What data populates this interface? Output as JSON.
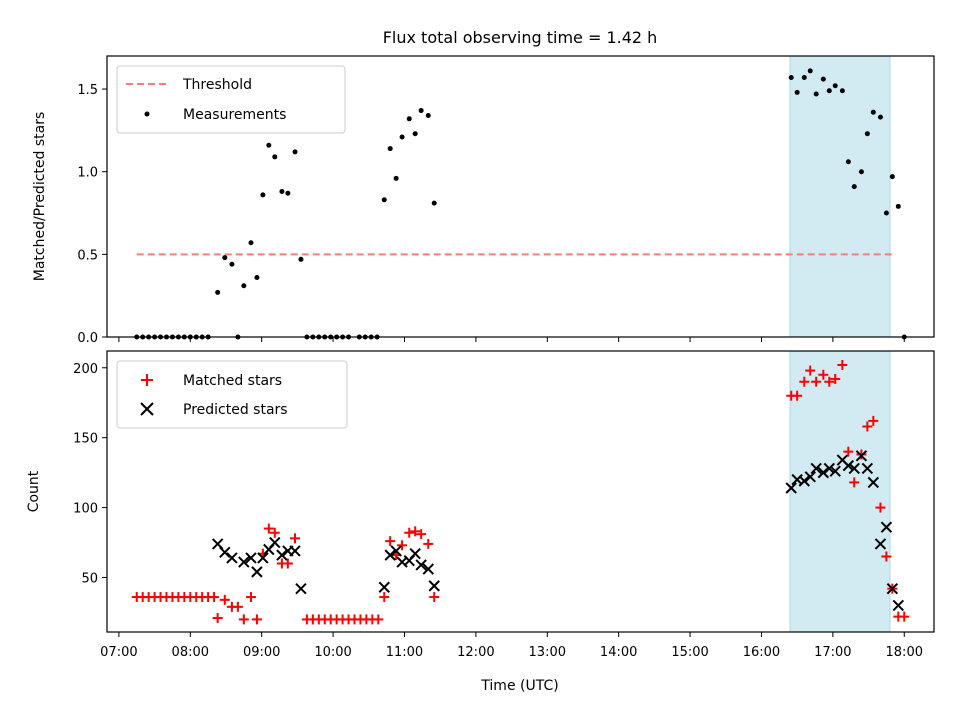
{
  "chart_data": [
    {
      "type": "scatter",
      "title": "Flux total observing time = 1.42 h",
      "ylabel": "Matched/Predicted stars",
      "xlabel": "",
      "xlim": [
        "06:50",
        "18:25"
      ],
      "ylim": [
        0,
        1.7
      ],
      "yticks": [
        0.0,
        0.5,
        1.0,
        1.5
      ],
      "ytick_labels": [
        "0.0",
        "0.5",
        "1.0",
        "1.5"
      ],
      "legend_position": "top-left",
      "highlight_span": {
        "start": "16:24",
        "end": "17:48",
        "color": "#add8e6"
      },
      "threshold": {
        "name": "Threshold",
        "value": 0.5,
        "x_start": "07:15",
        "x_end": "17:52",
        "color": "#ff7b7b",
        "style": "dashed"
      },
      "series": [
        {
          "name": "Measurements",
          "color": "#000000",
          "marker": "dot",
          "points": [
            [
              "07:15",
              0
            ],
            [
              "07:20",
              0
            ],
            [
              "07:25",
              0
            ],
            [
              "07:30",
              0
            ],
            [
              "07:35",
              0
            ],
            [
              "07:40",
              0
            ],
            [
              "07:45",
              0
            ],
            [
              "07:50",
              0
            ],
            [
              "07:55",
              0
            ],
            [
              "08:00",
              0
            ],
            [
              "08:05",
              0
            ],
            [
              "08:10",
              0
            ],
            [
              "08:15",
              0
            ],
            [
              "08:23",
              0.27
            ],
            [
              "08:29",
              0.48
            ],
            [
              "08:35",
              0.44
            ],
            [
              "08:40",
              0
            ],
            [
              "08:45",
              0.31
            ],
            [
              "08:51",
              0.57
            ],
            [
              "08:56",
              0.36
            ],
            [
              "09:01",
              0.86
            ],
            [
              "09:06",
              1.16
            ],
            [
              "09:11",
              1.09
            ],
            [
              "09:17",
              0.88
            ],
            [
              "09:22",
              0.87
            ],
            [
              "09:28",
              1.12
            ],
            [
              "09:33",
              0.47
            ],
            [
              "09:38",
              0
            ],
            [
              "09:43",
              0
            ],
            [
              "09:48",
              0
            ],
            [
              "09:53",
              0
            ],
            [
              "09:58",
              0
            ],
            [
              "10:03",
              0
            ],
            [
              "10:08",
              0
            ],
            [
              "10:13",
              0
            ],
            [
              "10:22",
              0
            ],
            [
              "10:27",
              0
            ],
            [
              "10:32",
              0
            ],
            [
              "10:37",
              0
            ],
            [
              "10:43",
              0.83
            ],
            [
              "10:48",
              1.14
            ],
            [
              "10:53",
              0.96
            ],
            [
              "10:58",
              1.21
            ],
            [
              "11:04",
              1.32
            ],
            [
              "11:09",
              1.23
            ],
            [
              "11:14",
              1.37
            ],
            [
              "11:20",
              1.34
            ],
            [
              "11:25",
              0.81
            ],
            [
              "16:25",
              1.57
            ],
            [
              "16:30",
              1.48
            ],
            [
              "16:36",
              1.57
            ],
            [
              "16:41",
              1.61
            ],
            [
              "16:46",
              1.47
            ],
            [
              "16:52",
              1.56
            ],
            [
              "16:57",
              1.49
            ],
            [
              "17:02",
              1.52
            ],
            [
              "17:08",
              1.49
            ],
            [
              "17:13",
              1.06
            ],
            [
              "17:18",
              0.91
            ],
            [
              "17:24",
              1.0
            ],
            [
              "17:29",
              1.23
            ],
            [
              "17:34",
              1.36
            ],
            [
              "17:40",
              1.33
            ],
            [
              "17:45",
              0.75
            ],
            [
              "17:50",
              0.97
            ],
            [
              "17:55",
              0.79
            ],
            [
              "18:00",
              0
            ]
          ]
        }
      ]
    },
    {
      "type": "scatter",
      "title": "",
      "ylabel": "Count",
      "xlabel": "Time (UTC)",
      "xlim": [
        "06:50",
        "18:25"
      ],
      "ylim": [
        11,
        212
      ],
      "yticks": [
        50,
        100,
        150,
        200
      ],
      "ytick_labels": [
        "50",
        "100",
        "150",
        "200"
      ],
      "xticks": [
        "07:00",
        "08:00",
        "09:00",
        "10:00",
        "11:00",
        "12:00",
        "13:00",
        "14:00",
        "15:00",
        "16:00",
        "17:00",
        "18:00"
      ],
      "xtick_labels": [
        "07:00",
        "08:00",
        "09:00",
        "10:00",
        "11:00",
        "12:00",
        "13:00",
        "14:00",
        "15:00",
        "16:00",
        "17:00",
        "18:00"
      ],
      "legend_position": "top-left",
      "highlight_span": {
        "start": "16:24",
        "end": "17:48",
        "color": "#add8e6"
      },
      "series": [
        {
          "name": "Matched stars",
          "color": "#ff0000",
          "marker": "plus",
          "points": [
            [
              "07:15",
              36
            ],
            [
              "07:20",
              36
            ],
            [
              "07:25",
              36
            ],
            [
              "07:30",
              36
            ],
            [
              "07:35",
              36
            ],
            [
              "07:40",
              36
            ],
            [
              "07:45",
              36
            ],
            [
              "07:50",
              36
            ],
            [
              "07:55",
              36
            ],
            [
              "08:00",
              36
            ],
            [
              "08:05",
              36
            ],
            [
              "08:10",
              36
            ],
            [
              "08:15",
              36
            ],
            [
              "08:20",
              36
            ],
            [
              "08:23",
              21
            ],
            [
              "08:29",
              34
            ],
            [
              "08:35",
              29
            ],
            [
              "08:40",
              29
            ],
            [
              "08:45",
              20
            ],
            [
              "08:51",
              36
            ],
            [
              "08:56",
              20
            ],
            [
              "09:01",
              67
            ],
            [
              "09:06",
              85
            ],
            [
              "09:11",
              82
            ],
            [
              "09:17",
              60
            ],
            [
              "09:22",
              60
            ],
            [
              "09:28",
              78
            ],
            [
              "09:38",
              20
            ],
            [
              "09:43",
              20
            ],
            [
              "09:48",
              20
            ],
            [
              "09:53",
              20
            ],
            [
              "09:58",
              20
            ],
            [
              "10:03",
              20
            ],
            [
              "10:08",
              20
            ],
            [
              "10:13",
              20
            ],
            [
              "10:18",
              20
            ],
            [
              "10:23",
              20
            ],
            [
              "10:28",
              20
            ],
            [
              "10:33",
              20
            ],
            [
              "10:38",
              20
            ],
            [
              "10:43",
              36
            ],
            [
              "10:48",
              76
            ],
            [
              "10:53",
              66
            ],
            [
              "10:58",
              73
            ],
            [
              "11:04",
              82
            ],
            [
              "11:09",
              83
            ],
            [
              "11:14",
              81
            ],
            [
              "11:20",
              74
            ],
            [
              "11:25",
              36
            ],
            [
              "16:25",
              180
            ],
            [
              "16:30",
              180
            ],
            [
              "16:36",
              190
            ],
            [
              "16:41",
              198
            ],
            [
              "16:46",
              190
            ],
            [
              "16:52",
              195
            ],
            [
              "16:57",
              190
            ],
            [
              "17:02",
              192
            ],
            [
              "17:08",
              202
            ],
            [
              "17:13",
              140
            ],
            [
              "17:18",
              118
            ],
            [
              "17:24",
              138
            ],
            [
              "17:29",
              158
            ],
            [
              "17:34",
              162
            ],
            [
              "17:40",
              100
            ],
            [
              "17:45",
              65
            ],
            [
              "17:50",
              42
            ],
            [
              "17:55",
              22
            ],
            [
              "18:00",
              22
            ]
          ]
        },
        {
          "name": "Predicted stars",
          "color": "#000000",
          "marker": "x",
          "points": [
            [
              "08:23",
              74
            ],
            [
              "08:29",
              68
            ],
            [
              "08:35",
              64
            ],
            [
              "08:45",
              61
            ],
            [
              "08:51",
              64
            ],
            [
              "08:56",
              54
            ],
            [
              "09:01",
              64
            ],
            [
              "09:06",
              70
            ],
            [
              "09:11",
              75
            ],
            [
              "09:17",
              66
            ],
            [
              "09:22",
              69
            ],
            [
              "09:28",
              69
            ],
            [
              "09:33",
              42
            ],
            [
              "10:43",
              43
            ],
            [
              "10:48",
              66
            ],
            [
              "10:53",
              69
            ],
            [
              "10:58",
              61
            ],
            [
              "11:04",
              62
            ],
            [
              "11:09",
              67
            ],
            [
              "11:14",
              59
            ],
            [
              "11:20",
              56
            ],
            [
              "11:25",
              44
            ],
            [
              "16:25",
              114
            ],
            [
              "16:30",
              120
            ],
            [
              "16:36",
              119
            ],
            [
              "16:41",
              122
            ],
            [
              "16:46",
              128
            ],
            [
              "16:52",
              125
            ],
            [
              "16:57",
              128
            ],
            [
              "17:02",
              126
            ],
            [
              "17:08",
              134
            ],
            [
              "17:13",
              130
            ],
            [
              "17:18",
              128
            ],
            [
              "17:24",
              137
            ],
            [
              "17:29",
              128
            ],
            [
              "17:34",
              118
            ],
            [
              "17:40",
              74
            ],
            [
              "17:45",
              86
            ],
            [
              "17:50",
              42
            ],
            [
              "17:55",
              30
            ]
          ]
        }
      ]
    }
  ]
}
